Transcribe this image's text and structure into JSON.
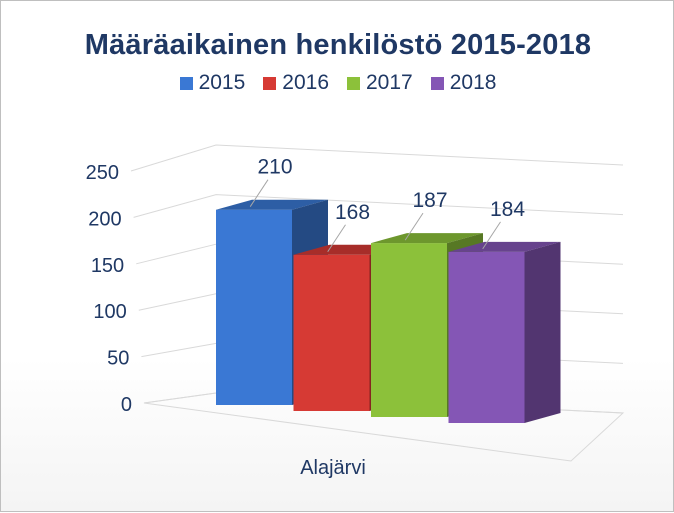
{
  "chart_data": {
    "type": "bar",
    "title": "Määräaikainen henkilöstö 2015-2018",
    "categories": [
      "Alajärvi"
    ],
    "series": [
      {
        "name": "2015",
        "values": [
          210
        ],
        "color": "#3a78d4"
      },
      {
        "name": "2016",
        "values": [
          168
        ],
        "color": "#d63a34"
      },
      {
        "name": "2017",
        "values": [
          187
        ],
        "color": "#8cc13a"
      },
      {
        "name": "2018",
        "values": [
          184
        ],
        "color": "#8456b5"
      }
    ],
    "data_labels": [
      "210",
      "168",
      "187",
      "184"
    ],
    "y_ticks": [
      "250",
      "200",
      "150",
      "100",
      "50",
      "0"
    ],
    "ylim": [
      0,
      250
    ],
    "xlabel": "",
    "ylabel": "",
    "grid": true,
    "legend_position": "top",
    "style": "3d-column"
  }
}
